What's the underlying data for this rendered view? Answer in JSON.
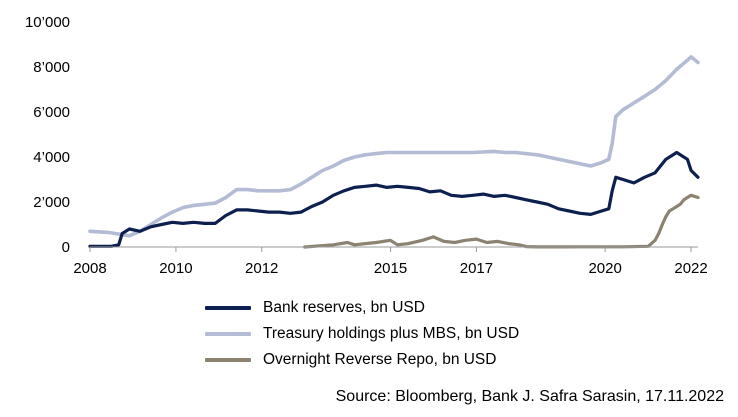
{
  "chart_data": {
    "type": "line",
    "x_type": "date",
    "xlim": [
      "2008-01-01",
      "2022-03-01"
    ],
    "ylim": [
      0,
      10000
    ],
    "x_ticks": [
      {
        "date": "2008-01-01",
        "label": "2008"
      },
      {
        "date": "2010-01-01",
        "label": "2010"
      },
      {
        "date": "2012-01-01",
        "label": "2012"
      },
      {
        "date": "2015-01-01",
        "label": "2015"
      },
      {
        "date": "2017-01-01",
        "label": "2017"
      },
      {
        "date": "2020-01-01",
        "label": "2020"
      },
      {
        "date": "2022-01-01",
        "label": "2022"
      }
    ],
    "y_ticks": [
      {
        "value": 0,
        "label": "0"
      },
      {
        "value": 2000,
        "label": "2’000"
      },
      {
        "value": 4000,
        "label": "4’000"
      },
      {
        "value": 6000,
        "label": "6’000"
      },
      {
        "value": 8000,
        "label": "8’000"
      },
      {
        "value": 10000,
        "label": "10’000"
      }
    ],
    "grid": false,
    "legend_position": "bottom",
    "series": [
      {
        "name": "Bank reserves, bn USD",
        "color": "#0d1f4f",
        "x": [
          "2008-01-01",
          "2008-07-01",
          "2008-09-01",
          "2008-10-01",
          "2008-12-01",
          "2009-03-01",
          "2009-06-01",
          "2009-09-01",
          "2009-12-01",
          "2010-03-01",
          "2010-06-01",
          "2010-09-01",
          "2010-12-01",
          "2011-03-01",
          "2011-06-01",
          "2011-09-01",
          "2011-12-01",
          "2012-03-01",
          "2012-06-01",
          "2012-09-01",
          "2012-12-01",
          "2013-03-01",
          "2013-06-01",
          "2013-09-01",
          "2013-12-01",
          "2014-03-01",
          "2014-06-01",
          "2014-09-01",
          "2014-12-01",
          "2015-03-01",
          "2015-06-01",
          "2015-09-01",
          "2015-12-01",
          "2016-03-01",
          "2016-06-01",
          "2016-09-01",
          "2016-12-01",
          "2017-03-01",
          "2017-06-01",
          "2017-09-01",
          "2017-12-01",
          "2018-03-01",
          "2018-06-01",
          "2018-09-01",
          "2018-12-01",
          "2019-03-01",
          "2019-06-01",
          "2019-09-01",
          "2019-12-01",
          "2020-02-01",
          "2020-03-01",
          "2020-04-01",
          "2020-06-01",
          "2020-09-01",
          "2020-12-01",
          "2021-03-01",
          "2021-06-01",
          "2021-09-01",
          "2021-12-01",
          "2022-01-01",
          "2022-03-01"
        ],
        "values": [
          30,
          30,
          100,
          600,
          800,
          700,
          900,
          1000,
          1100,
          1050,
          1100,
          1050,
          1050,
          1400,
          1650,
          1650,
          1600,
          1550,
          1550,
          1500,
          1550,
          1800,
          2000,
          2300,
          2500,
          2650,
          2700,
          2750,
          2650,
          2700,
          2650,
          2600,
          2450,
          2500,
          2300,
          2250,
          2300,
          2350,
          2250,
          2300,
          2200,
          2100,
          2000,
          1900,
          1700,
          1600,
          1500,
          1450,
          1600,
          1700,
          2500,
          3100,
          3000,
          2850,
          3100,
          3300,
          3900,
          4200,
          3900,
          3400,
          3100
        ]
      },
      {
        "name": "Treasury holdings plus MBS, bn USD",
        "color": "#b3bcd4",
        "x": [
          "2008-01-01",
          "2008-06-01",
          "2008-12-01",
          "2009-03-01",
          "2009-06-01",
          "2009-09-01",
          "2009-12-01",
          "2010-03-01",
          "2010-06-01",
          "2010-09-01",
          "2010-12-01",
          "2011-03-01",
          "2011-06-01",
          "2011-09-01",
          "2011-12-01",
          "2012-03-01",
          "2012-06-01",
          "2012-09-01",
          "2012-12-01",
          "2013-03-01",
          "2013-06-01",
          "2013-09-01",
          "2013-12-01",
          "2014-03-01",
          "2014-06-01",
          "2014-09-01",
          "2014-12-01",
          "2015-06-01",
          "2015-12-01",
          "2016-06-01",
          "2016-12-01",
          "2017-06-01",
          "2017-09-01",
          "2017-12-01",
          "2018-06-01",
          "2018-12-01",
          "2019-06-01",
          "2019-09-01",
          "2019-12-01",
          "2020-02-01",
          "2020-03-01",
          "2020-04-01",
          "2020-06-01",
          "2020-09-01",
          "2020-12-01",
          "2021-03-01",
          "2021-06-01",
          "2021-09-01",
          "2021-12-01",
          "2022-01-01",
          "2022-03-01"
        ],
        "values": [
          700,
          650,
          500,
          700,
          1000,
          1300,
          1550,
          1750,
          1850,
          1900,
          1950,
          2200,
          2550,
          2550,
          2500,
          2500,
          2500,
          2550,
          2800,
          3100,
          3400,
          3600,
          3850,
          4000,
          4100,
          4150,
          4200,
          4200,
          4200,
          4200,
          4200,
          4250,
          4200,
          4200,
          4100,
          3900,
          3700,
          3600,
          3750,
          3900,
          4600,
          5800,
          6100,
          6400,
          6700,
          7000,
          7400,
          7900,
          8300,
          8450,
          8200
        ]
      },
      {
        "name": "Overnight Reverse Repo, bn USD",
        "color": "#8c8271",
        "x": [
          "2013-01-01",
          "2013-09-01",
          "2013-12-31",
          "2014-03-01",
          "2014-06-01",
          "2014-09-01",
          "2014-12-31",
          "2015-03-01",
          "2015-06-01",
          "2015-09-30",
          "2015-12-31",
          "2016-03-31",
          "2016-06-30",
          "2016-09-30",
          "2016-12-31",
          "2017-03-31",
          "2017-06-30",
          "2017-09-30",
          "2017-12-31",
          "2018-03-01",
          "2018-06-01",
          "2019-01-01",
          "2019-06-01",
          "2020-01-01",
          "2020-06-01",
          "2021-01-01",
          "2021-03-01",
          "2021-04-01",
          "2021-05-01",
          "2021-06-01",
          "2021-07-01",
          "2021-08-01",
          "2021-09-01",
          "2021-10-01",
          "2021-11-01",
          "2021-12-01",
          "2022-01-01",
          "2022-03-01"
        ],
        "values": [
          0,
          100,
          200,
          100,
          150,
          200,
          300,
          100,
          150,
          300,
          450,
          250,
          200,
          300,
          350,
          200,
          250,
          150,
          100,
          20,
          5,
          5,
          10,
          10,
          10,
          30,
          300,
          600,
          1000,
          1350,
          1600,
          1700,
          1800,
          1900,
          2100,
          2200,
          2300,
          2200
        ]
      }
    ]
  },
  "legend": {
    "items": [
      {
        "label": "Bank reserves, bn USD",
        "color": "#0d1f4f"
      },
      {
        "label": "Treasury holdings plus MBS, bn USD",
        "color": "#b3bcd4"
      },
      {
        "label": "Overnight Reverse Repo, bn USD",
        "color": "#8c8271"
      }
    ]
  },
  "footer": {
    "source": "Source: Bloomberg, Bank J. Safra Sarasin, 17.11.2022"
  }
}
